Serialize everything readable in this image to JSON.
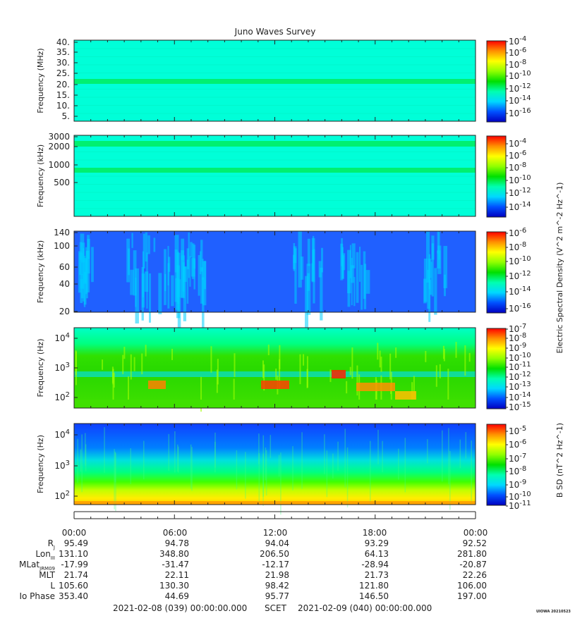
{
  "chart_data": {
    "type": "heatmap",
    "title": "Juno Waves Survey",
    "x_tick_labels": [
      "00:00",
      "06:00",
      "12:00",
      "18:00",
      "00:00"
    ],
    "panels": [
      {
        "name": "hfwbr-mhz",
        "ylabel": "Frequency (MHz)",
        "yticks": [
          "40.",
          "35.",
          "30.",
          "25.",
          "20.",
          "15.",
          "10.",
          "5."
        ],
        "colorbar_labels": [
          "10^-4",
          "10^-6",
          "10^-8",
          "10^-10",
          "10^-12",
          "10^-14",
          "10^-16"
        ],
        "colorbar_exponents": [
          -4,
          -6,
          -8,
          -10,
          -12,
          -14,
          -16
        ],
        "colorbar_title": ""
      },
      {
        "name": "hfr-khz",
        "ylabel": "Frequency (kHz)",
        "yticks": [
          "3000",
          "2000",
          "1000",
          "500"
        ],
        "colorbar_labels": [
          "10^-4",
          "10^-6",
          "10^-8",
          "10^-10",
          "10^-12",
          "10^-14"
        ],
        "colorbar_exponents": [
          -4,
          -6,
          -8,
          -10,
          -12,
          -14
        ],
        "colorbar_title": ""
      },
      {
        "name": "lfr-khz",
        "ylabel": "Frequency (kHz)",
        "yticks": [
          "140",
          "100",
          "60",
          "40",
          "20"
        ],
        "colorbar_labels": [
          "10^-6",
          "10^-8",
          "10^-10",
          "10^-12",
          "10^-14",
          "10^-16"
        ],
        "colorbar_exponents": [
          -6,
          -8,
          -10,
          -12,
          -14,
          -16
        ],
        "colorbar_title": "Electric Spectral Density (V^2 m^-2 Hz^-1)"
      },
      {
        "name": "lfr-hz-electric",
        "ylabel": "Frequency (Hz)",
        "yticks": [
          "10^4",
          "10^3",
          "10^2"
        ],
        "colorbar_labels": [
          "10^-7",
          "10^-8",
          "10^-9",
          "10^-10",
          "10^-11",
          "10^-12",
          "10^-13",
          "10^-14",
          "10^-15"
        ],
        "colorbar_exponents": [
          -7,
          -8,
          -9,
          -10,
          -11,
          -12,
          -13,
          -14,
          -15
        ],
        "colorbar_title": ""
      },
      {
        "name": "lfr-hz-magnetic",
        "ylabel": "Frequency (Hz)",
        "yticks": [
          "10^4",
          "10^3",
          "10^2"
        ],
        "colorbar_labels": [
          "10^-5",
          "10^-6",
          "10^-7",
          "10^-8",
          "10^-9",
          "10^-10",
          "10^-11"
        ],
        "colorbar_exponents": [
          -5,
          -6,
          -7,
          -8,
          -9,
          -10,
          -11
        ],
        "colorbar_title": "B SD (nT^2 Hz^-1)"
      }
    ],
    "ephemeris": {
      "times": [
        "00:00",
        "06:00",
        "12:00",
        "18:00",
        "00:00"
      ],
      "rows": [
        {
          "label": "Rj",
          "label_main": "R",
          "label_sub": "J",
          "values": [
            "95.49",
            "94.78",
            "94.04",
            "93.29",
            "92.52"
          ]
        },
        {
          "label": "LonIII",
          "label_main": "Lon",
          "label_sub": "III",
          "values": [
            "131.10",
            "348.80",
            "206.50",
            "64.13",
            "281.80"
          ]
        },
        {
          "label": "MLatJRM09",
          "label_main": "MLat",
          "label_sub": "JRM09",
          "values": [
            "-17.99",
            "-31.47",
            "-12.17",
            "-28.94",
            "-20.87"
          ]
        },
        {
          "label": "MLT",
          "label_main": "MLT",
          "label_sub": "",
          "values": [
            "21.74",
            "22.11",
            "21.98",
            "21.73",
            "22.26"
          ]
        },
        {
          "label": "L",
          "label_main": "L",
          "label_sub": "",
          "values": [
            "105.60",
            "130.30",
            "98.42",
            "121.80",
            "106.00"
          ]
        },
        {
          "label": "Io Phase",
          "label_main": "Io Phase",
          "label_sub": "",
          "values": [
            "353.40",
            "44.69",
            "95.77",
            "146.50",
            "197.00"
          ]
        }
      ]
    },
    "footer": {
      "start": "2021-02-08 (039) 00:00:00.000",
      "scet": "SCET",
      "end": "2021-02-09 (040) 00:00:00.000"
    },
    "stamp": "UIOWA 20210523"
  },
  "colors": {
    "colormap": [
      "#0000c0",
      "#0050ff",
      "#00d8ff",
      "#00ffb0",
      "#00e000",
      "#90ff00",
      "#ffff00",
      "#ff9000",
      "#ff0000"
    ],
    "axis": "#222222",
    "background": "#ffffff"
  }
}
